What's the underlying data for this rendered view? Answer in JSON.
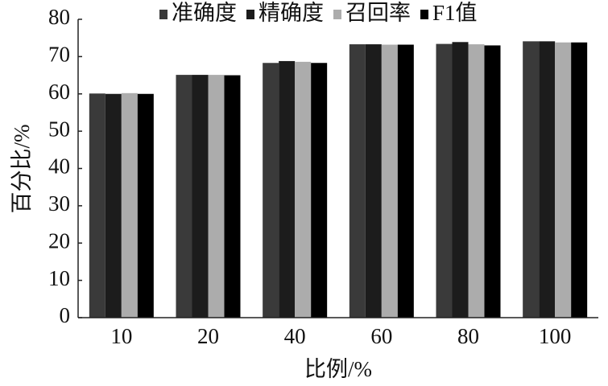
{
  "chart_data": {
    "type": "bar",
    "categories": [
      "10",
      "20",
      "40",
      "60",
      "80",
      "100"
    ],
    "series": [
      {
        "name": "准确度",
        "color": "#3a3a3a",
        "values": [
          60.1,
          65.1,
          68.3,
          73.3,
          73.4,
          74.1
        ]
      },
      {
        "name": "精确度",
        "color": "#1c1c1c",
        "values": [
          60.0,
          65.1,
          68.8,
          73.3,
          73.9,
          74.1
        ]
      },
      {
        "name": "召回率",
        "color": "#acacac",
        "values": [
          60.2,
          65.1,
          68.6,
          73.2,
          73.3,
          73.8
        ]
      },
      {
        "name": "F1值",
        "color": "#000000",
        "values": [
          60.0,
          65.0,
          68.3,
          73.2,
          73.0,
          73.8
        ]
      }
    ],
    "x_label": "比例/%",
    "y_label": "百分比/%",
    "ylim": [
      0,
      80
    ],
    "yticks": [
      0,
      10,
      20,
      30,
      40,
      50,
      60,
      70,
      80
    ],
    "legend": "top"
  }
}
